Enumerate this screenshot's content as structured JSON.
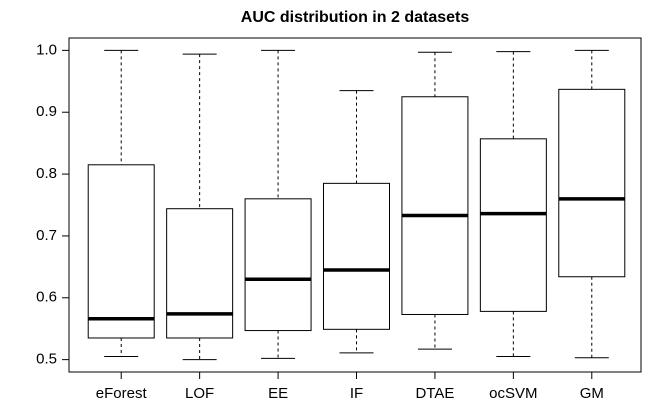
{
  "chart_data": {
    "type": "box",
    "title": "AUC distribution in 2  datasets",
    "categories": [
      "eForest",
      "LOF",
      "EE",
      "IF",
      "DTAE",
      "ocSVM",
      "GM"
    ],
    "boxes": [
      {
        "low": 0.505,
        "q1": 0.535,
        "median": 0.566,
        "q3": 0.815,
        "high": 1.0
      },
      {
        "low": 0.5,
        "q1": 0.535,
        "median": 0.574,
        "q3": 0.744,
        "high": 0.994
      },
      {
        "low": 0.502,
        "q1": 0.547,
        "median": 0.63,
        "q3": 0.76,
        "high": 1.0
      },
      {
        "low": 0.511,
        "q1": 0.549,
        "median": 0.645,
        "q3": 0.785,
        "high": 0.935
      },
      {
        "low": 0.517,
        "q1": 0.573,
        "median": 0.733,
        "q3": 0.925,
        "high": 0.997
      },
      {
        "low": 0.505,
        "q1": 0.578,
        "median": 0.736,
        "q3": 0.857,
        "high": 0.998
      },
      {
        "low": 0.503,
        "q1": 0.634,
        "median": 0.76,
        "q3": 0.937,
        "high": 1.0
      }
    ],
    "ylim": [
      0.48,
      1.02
    ],
    "yticks": [
      0.5,
      0.6,
      0.7,
      0.8,
      0.9,
      {
        "value": 1.0,
        "label": "1.0"
      }
    ],
    "color": "#ffffff"
  }
}
